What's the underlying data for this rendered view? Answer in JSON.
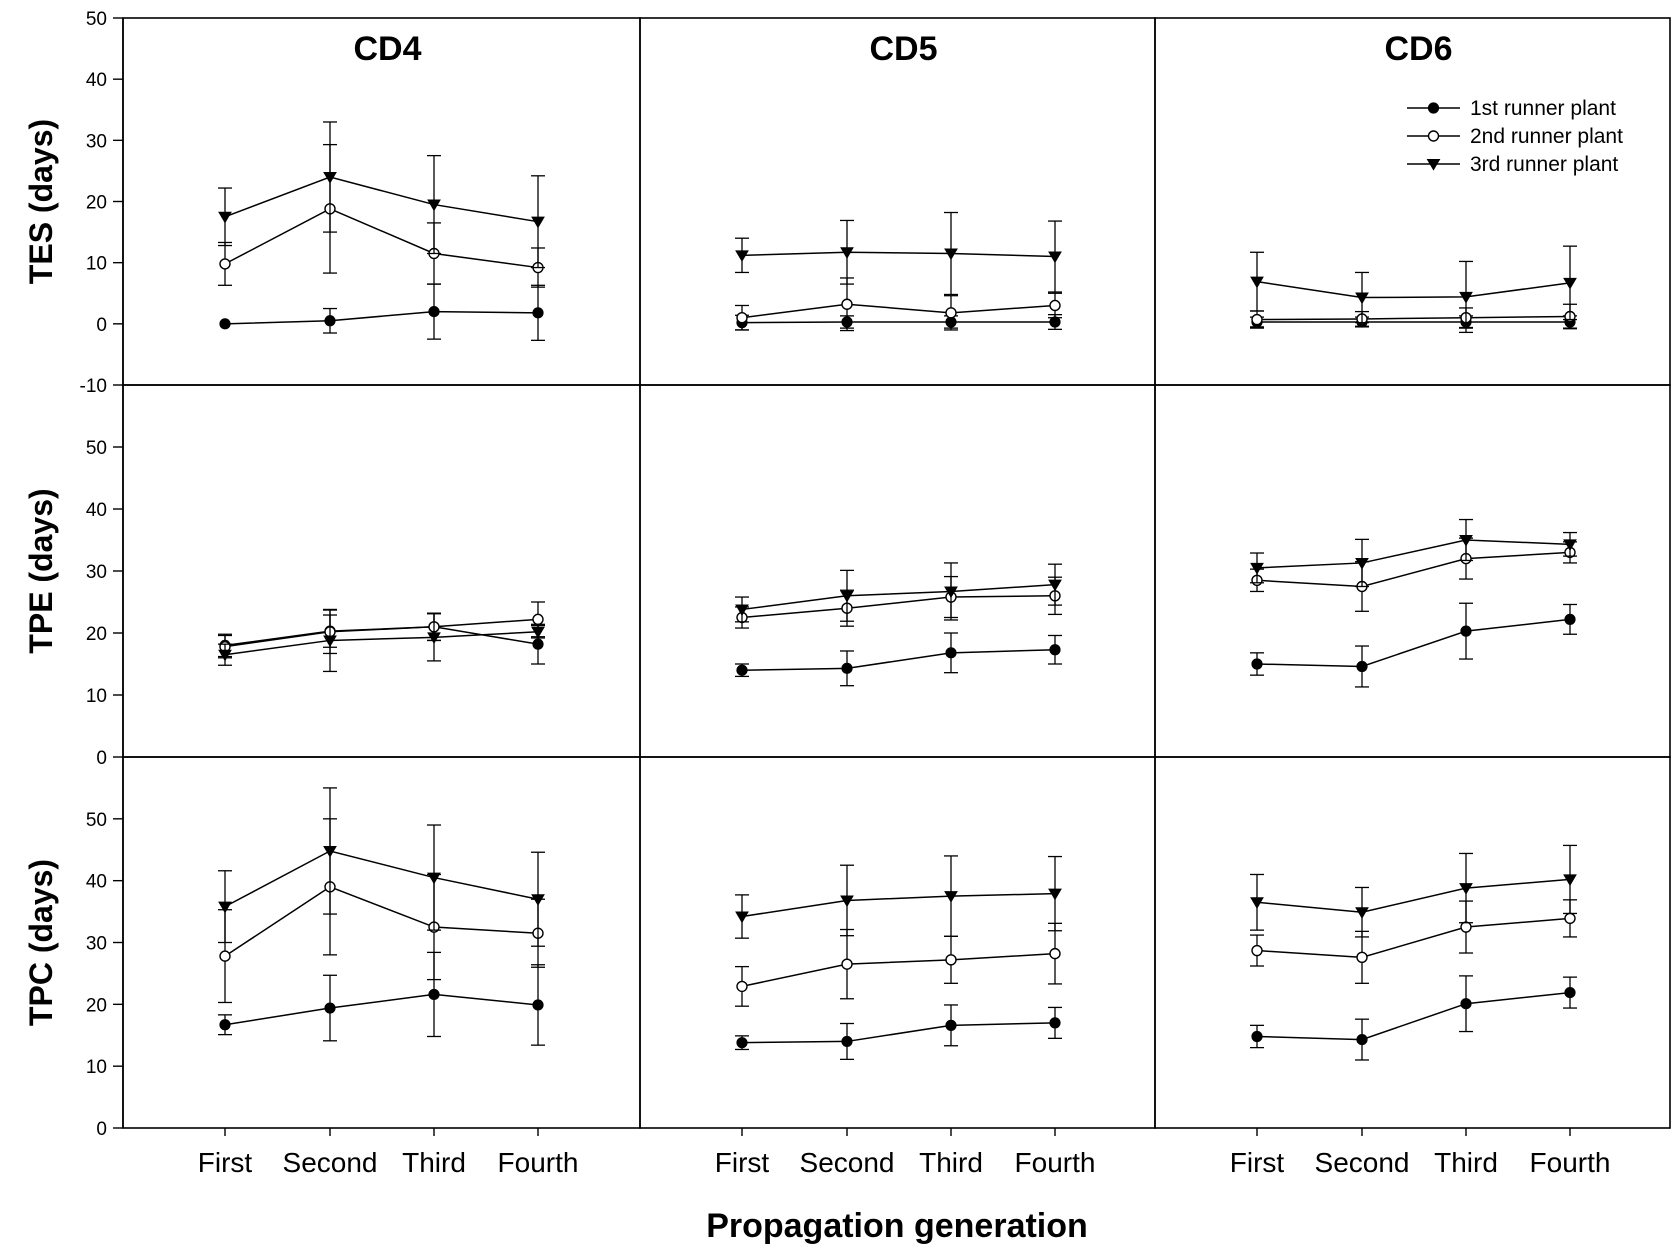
{
  "chart_data": {
    "type": "line",
    "xlabel": "Propagation generation",
    "categories": [
      "First",
      "Second",
      "Third",
      "Fourth"
    ],
    "columns": [
      "CD4",
      "CD5",
      "CD6"
    ],
    "rows": [
      {
        "ylabel": "TES (days)",
        "ylim": [
          -10,
          50
        ],
        "ticks": [
          -10,
          0,
          10,
          20,
          30,
          40,
          50
        ]
      },
      {
        "ylabel": "TPE (days)",
        "ylim": [
          0,
          60
        ],
        "ticks": [
          0,
          10,
          20,
          30,
          40,
          50
        ]
      },
      {
        "ylabel": "TPC (days)",
        "ylim": [
          0,
          60
        ],
        "ticks": [
          0,
          10,
          20,
          30,
          40,
          50
        ]
      }
    ],
    "legend": {
      "placement": "top-right",
      "entries": [
        {
          "label": "1st runner plant",
          "marker": "filled-circle"
        },
        {
          "label": "2nd runner plant",
          "marker": "open-circle"
        },
        {
          "label": "3rd runner plant",
          "marker": "filled-triangle-down"
        }
      ]
    },
    "panels": [
      {
        "row": 0,
        "col": 0,
        "series": [
          {
            "values": [
              0,
              0.5,
              2,
              1.8
            ],
            "errors": [
              0,
              2,
              4.5,
              4.5
            ]
          },
          {
            "values": [
              9.8,
              18.8,
              11.5,
              9.2
            ],
            "errors": [
              3.5,
              10.5,
              5,
              3.2
            ]
          },
          {
            "values": [
              17.5,
              24,
              19.5,
              16.7
            ],
            "errors": [
              4.7,
              9,
              8,
              7.5
            ]
          }
        ]
      },
      {
        "row": 0,
        "col": 1,
        "series": [
          {
            "values": [
              0.2,
              0.3,
              0.3,
              0.3
            ],
            "errors": [
              1.2,
              1,
              1,
              1.2
            ]
          },
          {
            "values": [
              1,
              3.2,
              1.8,
              3
            ],
            "errors": [
              2,
              4.3,
              2.8,
              2
            ]
          },
          {
            "values": [
              11.2,
              11.7,
              11.5,
              11
            ],
            "errors": [
              2.8,
              5.2,
              6.7,
              5.8
            ]
          }
        ]
      },
      {
        "row": 0,
        "col": 2,
        "series": [
          {
            "values": [
              0.3,
              0.3,
              0.3,
              0.3
            ],
            "errors": [
              0.8,
              0.8,
              1,
              1
            ]
          },
          {
            "values": [
              0.7,
              0.8,
              1,
              1.2
            ],
            "errors": [
              1.4,
              1.2,
              1.6,
              2
            ]
          },
          {
            "values": [
              6.9,
              4.3,
              4.4,
              6.7
            ],
            "errors": [
              4.8,
              4.1,
              5.8,
              6
            ]
          }
        ]
      },
      {
        "row": 1,
        "col": 0,
        "series": [
          {
            "values": [
              18,
              20.3,
              21,
              18.2
            ],
            "errors": [
              1.8,
              2.6,
              2.2,
              3.2
            ]
          },
          {
            "values": [
              17.8,
              20.2,
              21,
              22.2
            ],
            "errors": [
              1.8,
              3.5,
              2.2,
              2.8
            ]
          },
          {
            "values": [
              16.5,
              18.8,
              19.3,
              20.2
            ],
            "errors": [
              1.7,
              5,
              3.8,
              1
            ]
          }
        ]
      },
      {
        "row": 1,
        "col": 1,
        "series": [
          {
            "values": [
              14,
              14.3,
              16.8,
              17.3
            ],
            "errors": [
              1,
              2.8,
              3.2,
              2.3
            ]
          },
          {
            "values": [
              22.5,
              24,
              25.8,
              26
            ],
            "errors": [
              1.7,
              2.9,
              3.3,
              3
            ]
          },
          {
            "values": [
              23.8,
              26,
              26.7,
              27.8
            ],
            "errors": [
              2,
              4.1,
              4.6,
              3.3
            ]
          }
        ]
      },
      {
        "row": 1,
        "col": 2,
        "series": [
          {
            "values": [
              15,
              14.6,
              20.3,
              22.2
            ],
            "errors": [
              1.8,
              3.3,
              4.5,
              2.4
            ]
          },
          {
            "values": [
              28.5,
              27.5,
              32,
              33
            ],
            "errors": [
              1.8,
              4,
              3.3,
              1.7
            ]
          },
          {
            "values": [
              30.5,
              31.3,
              35,
              34.3
            ],
            "errors": [
              2.4,
              3.8,
              3.3,
              1.9
            ]
          }
        ]
      },
      {
        "row": 2,
        "col": 0,
        "series": [
          {
            "values": [
              16.7,
              19.4,
              21.6,
              19.9
            ],
            "errors": [
              1.6,
              5.3,
              6.8,
              6.5
            ]
          },
          {
            "values": [
              27.8,
              39,
              32.5,
              31.5
            ],
            "errors": [
              7.5,
              11,
              8.5,
              5.5
            ]
          },
          {
            "values": [
              35.8,
              44.8,
              40.5,
              37
            ],
            "errors": [
              5.8,
              10.2,
              8.5,
              7.6
            ]
          }
        ]
      },
      {
        "row": 2,
        "col": 1,
        "series": [
          {
            "values": [
              13.8,
              14,
              16.6,
              17
            ],
            "errors": [
              1.1,
              2.9,
              3.3,
              2.5
            ]
          },
          {
            "values": [
              22.9,
              26.5,
              27.2,
              28.2
            ],
            "errors": [
              3.2,
              5.6,
              3.8,
              4.9
            ]
          },
          {
            "values": [
              34.2,
              36.8,
              37.5,
              37.9
            ],
            "errors": [
              3.5,
              5.7,
              6.5,
              6
            ]
          }
        ]
      },
      {
        "row": 2,
        "col": 2,
        "series": [
          {
            "values": [
              14.8,
              14.3,
              20.1,
              21.9
            ],
            "errors": [
              1.8,
              3.3,
              4.5,
              2.5
            ]
          },
          {
            "values": [
              28.7,
              27.6,
              32.5,
              33.9
            ],
            "errors": [
              2.5,
              4.2,
              4.2,
              3
            ]
          },
          {
            "values": [
              36.5,
              34.9,
              38.8,
              40.2
            ],
            "errors": [
              4.5,
              4,
              5.6,
              5.5
            ]
          }
        ]
      }
    ]
  }
}
